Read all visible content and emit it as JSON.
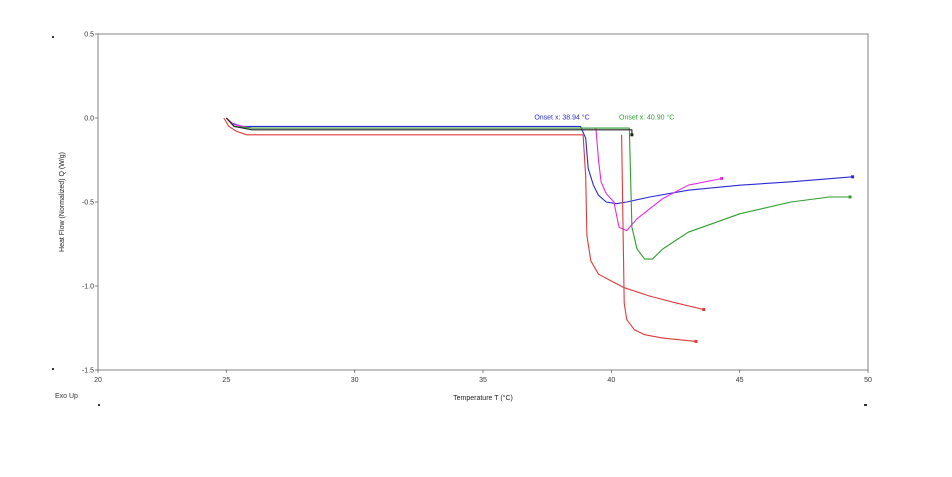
{
  "chart_data": {
    "type": "line",
    "xlabel": "Temperature T (°C)",
    "ylabel": "Heat Flow (Normalized) Q (W/g)",
    "corner_label": "Exo Up",
    "xlim": [
      20,
      50
    ],
    "ylim": [
      -1.5,
      0.5
    ],
    "x_ticks": [
      20,
      25,
      30,
      35,
      40,
      45,
      50
    ],
    "x_tick_labels": [
      "20",
      "25",
      "30",
      "35",
      "40",
      "45",
      "50"
    ],
    "y_ticks": [
      0.5,
      0.0,
      -0.5,
      -1.0,
      -1.5
    ],
    "y_tick_labels": [
      "0.5",
      "0.0",
      "-0.5",
      "-1.0",
      "-1.5"
    ],
    "grid": false,
    "legend": "none",
    "annotations": [
      {
        "text": "Onset x: 38.94 °C",
        "x": 37.0,
        "y": -0.01,
        "color": "#2a2ad6"
      },
      {
        "text": "Onset x: 40.90 °C",
        "x": 40.3,
        "y": -0.01,
        "color": "#2e9e2e"
      }
    ],
    "series": [
      {
        "color": "#2a2ad6",
        "x": [
          25.0,
          25.2,
          25.6,
          26.5,
          28,
          32.2,
          35,
          37.2,
          38.8,
          39.0,
          39.1,
          39.3,
          39.5,
          39.8,
          40.2,
          40.6,
          41.5,
          43,
          45,
          47,
          49.4
        ],
        "y": [
          0.0,
          -0.03,
          -0.05,
          -0.05,
          -0.05,
          -0.05,
          -0.05,
          -0.05,
          -0.05,
          -0.12,
          -0.3,
          -0.4,
          -0.46,
          -0.5,
          -0.51,
          -0.5,
          -0.47,
          -0.43,
          -0.4,
          -0.38,
          -0.35
        ]
      },
      {
        "color": "#e42be4",
        "x": [
          25.0,
          25.3,
          26,
          30,
          34.8,
          38,
          39.4,
          39.5,
          39.6,
          39.8,
          40.1,
          40.3,
          40.6,
          41,
          42,
          43,
          44.3
        ],
        "y": [
          0.0,
          -0.04,
          -0.06,
          -0.06,
          -0.06,
          -0.06,
          -0.06,
          -0.25,
          -0.38,
          -0.45,
          -0.5,
          -0.65,
          -0.67,
          -0.6,
          -0.48,
          -0.4,
          -0.36
        ]
      },
      {
        "color": "#2e9e2e",
        "x": [
          25.0,
          25.3,
          26,
          30,
          35,
          40.7,
          40.75,
          40.8,
          41.0,
          41.3,
          41.6,
          42,
          43,
          45,
          47,
          48.5,
          49.3
        ],
        "y": [
          0.0,
          -0.05,
          -0.06,
          -0.06,
          -0.06,
          -0.06,
          -0.35,
          -0.65,
          -0.78,
          -0.84,
          -0.84,
          -0.78,
          -0.68,
          -0.57,
          -0.5,
          -0.47,
          -0.47
        ]
      },
      {
        "color": "#222222",
        "x": [
          25.0,
          25.3,
          26,
          30,
          35,
          40.8,
          40.8
        ],
        "y": [
          0.0,
          -0.05,
          -0.07,
          -0.07,
          -0.07,
          -0.07,
          -0.1
        ]
      },
      {
        "color": "#e03a3a",
        "x": [
          24.9,
          25.1,
          25.4,
          25.8,
          26.5,
          28,
          30,
          34.6,
          36,
          38.9,
          39.0,
          39.05,
          39.2,
          39.5,
          40.0,
          40.5,
          41.5,
          42.5,
          43.6
        ],
        "y": [
          0.0,
          -0.05,
          -0.08,
          -0.1,
          -0.1,
          -0.1,
          -0.1,
          -0.1,
          -0.1,
          -0.1,
          -0.35,
          -0.7,
          -0.85,
          -0.93,
          -0.97,
          -1.01,
          -1.06,
          -1.1,
          -1.14
        ]
      },
      {
        "color": "#e03a3a",
        "x": [
          40.4,
          40.45,
          40.5,
          40.6,
          40.9,
          41.3,
          42,
          43.3
        ],
        "y": [
          -0.1,
          -0.6,
          -1.1,
          -1.2,
          -1.26,
          -1.29,
          -1.31,
          -1.33
        ]
      }
    ]
  }
}
